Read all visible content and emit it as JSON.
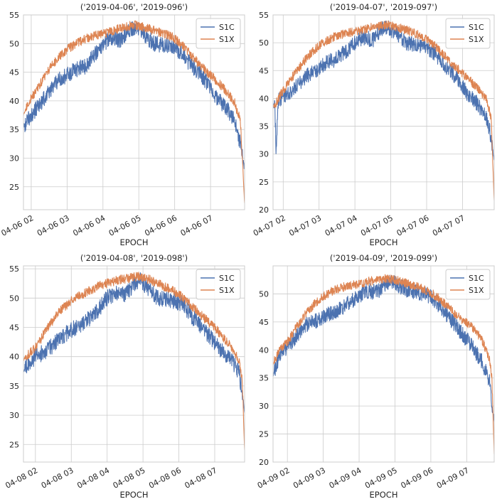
{
  "chart_data": [
    {
      "type": "line",
      "title": "('2019-04-06', '2019-096')",
      "xlabel": "EPOCH",
      "ylabel": "",
      "xlim": [
        "2019-04-06 01:47",
        "2019-04-06 07:57"
      ],
      "ylim": [
        21,
        55
      ],
      "yticks": [
        25,
        30,
        35,
        40,
        45,
        50,
        55
      ],
      "xticks": [
        "2019-04-06 02:00",
        "2019-04-06 03:00",
        "2019-04-06 04:00",
        "2019-04-06 05:00",
        "2019-04-06 06:00",
        "2019-04-06 07:00"
      ],
      "xticklabels": [
        "04-06 02",
        "04-06 03",
        "04-06 04",
        "04-06 05",
        "04-06 06",
        "04-06 07"
      ],
      "grid": true,
      "legend": "top-right",
      "series": [
        {
          "name": "S1C",
          "color": "#4c72b0",
          "x": [
            "2019-04-06 01:47",
            "2019-04-06 01:50",
            "2019-04-06 02:00",
            "2019-04-06 02:15",
            "2019-04-06 02:30",
            "2019-04-06 02:45",
            "2019-04-06 03:00",
            "2019-04-06 03:15",
            "2019-04-06 03:30",
            "2019-04-06 03:45",
            "2019-04-06 04:00",
            "2019-04-06 04:15",
            "2019-04-06 04:30",
            "2019-04-06 04:45",
            "2019-04-06 04:55",
            "2019-04-06 05:10",
            "2019-04-06 05:25",
            "2019-04-06 05:40",
            "2019-04-06 05:55",
            "2019-04-06 06:10",
            "2019-04-06 06:25",
            "2019-04-06 06:40",
            "2019-04-06 06:55",
            "2019-04-06 07:10",
            "2019-04-06 07:25",
            "2019-04-06 07:40",
            "2019-04-06 07:50",
            "2019-04-06 07:57"
          ],
          "y": [
            35.5,
            36,
            37.5,
            39.5,
            41.5,
            43.5,
            44.5,
            45.5,
            46,
            48,
            50,
            51,
            50.5,
            52.5,
            52.8,
            51.5,
            50,
            49.8,
            49.5,
            48.5,
            46.5,
            45,
            43,
            40.5,
            39,
            36.5,
            32.5,
            28
          ]
        },
        {
          "name": "S1X",
          "color": "#dd8452",
          "x": [
            "2019-04-06 01:47",
            "2019-04-06 01:50",
            "2019-04-06 02:00",
            "2019-04-06 02:15",
            "2019-04-06 02:30",
            "2019-04-06 02:45",
            "2019-04-06 03:00",
            "2019-04-06 03:15",
            "2019-04-06 03:30",
            "2019-04-06 03:45",
            "2019-04-06 04:00",
            "2019-04-06 04:15",
            "2019-04-06 04:30",
            "2019-04-06 04:45",
            "2019-04-06 04:55",
            "2019-04-06 05:10",
            "2019-04-06 05:25",
            "2019-04-06 05:40",
            "2019-04-06 05:55",
            "2019-04-06 06:10",
            "2019-04-06 06:25",
            "2019-04-06 06:40",
            "2019-04-06 06:55",
            "2019-04-06 07:10",
            "2019-04-06 07:25",
            "2019-04-06 07:40",
            "2019-04-06 07:50",
            "2019-04-06 07:57"
          ],
          "y": [
            37.5,
            38.5,
            40.5,
            43,
            45.5,
            47.5,
            49,
            50,
            50.8,
            51.3,
            51.7,
            52.2,
            52.7,
            53.1,
            53.2,
            52.8,
            52.3,
            51.8,
            51.2,
            50,
            48.3,
            46.5,
            45,
            43.5,
            41.8,
            39.8,
            36.5,
            22
          ]
        }
      ]
    },
    {
      "type": "line",
      "title": "('2019-04-07', '2019-097')",
      "xlabel": "EPOCH",
      "ylabel": "",
      "xlim": [
        "2019-04-07 01:43",
        "2019-04-07 07:53"
      ],
      "ylim": [
        20,
        55
      ],
      "yticks": [
        20,
        25,
        30,
        35,
        40,
        45,
        50,
        55
      ],
      "xticks": [
        "2019-04-07 02:00",
        "2019-04-07 03:00",
        "2019-04-07 04:00",
        "2019-04-07 05:00",
        "2019-04-07 06:00",
        "2019-04-07 07:00"
      ],
      "xticklabels": [
        "04-07 02",
        "04-07 03",
        "04-07 04",
        "04-07 05",
        "04-07 06",
        "04-07 07"
      ],
      "grid": true,
      "legend": "top-right",
      "series": [
        {
          "name": "S1C",
          "color": "#4c72b0",
          "x": [
            "2019-04-07 01:43",
            "2019-04-07 01:46",
            "2019-04-07 01:48",
            "2019-04-07 01:52",
            "2019-04-07 02:00",
            "2019-04-07 02:15",
            "2019-04-07 02:30",
            "2019-04-07 02:45",
            "2019-04-07 03:00",
            "2019-04-07 03:15",
            "2019-04-07 03:30",
            "2019-04-07 03:45",
            "2019-04-07 04:00",
            "2019-04-07 04:15",
            "2019-04-07 04:30",
            "2019-04-07 04:45",
            "2019-04-07 04:55",
            "2019-04-07 05:10",
            "2019-04-07 05:25",
            "2019-04-07 05:40",
            "2019-04-07 05:55",
            "2019-04-07 06:10",
            "2019-04-07 06:25",
            "2019-04-07 06:40",
            "2019-04-07 06:55",
            "2019-04-07 07:10",
            "2019-04-07 07:25",
            "2019-04-07 07:40",
            "2019-04-07 07:48",
            "2019-04-07 07:53"
          ],
          "y": [
            38.5,
            38.8,
            31,
            39.5,
            40.5,
            41.5,
            43,
            44.5,
            45.5,
            46.5,
            47.2,
            48.5,
            50,
            51,
            50.5,
            52.5,
            52.8,
            51.5,
            50,
            49.8,
            49.5,
            48.5,
            46.5,
            45,
            43,
            40.5,
            39,
            36.5,
            33,
            29
          ]
        },
        {
          "name": "S1X",
          "color": "#dd8452",
          "x": [
            "2019-04-07 01:43",
            "2019-04-07 01:50",
            "2019-04-07 02:00",
            "2019-04-07 02:15",
            "2019-04-07 02:30",
            "2019-04-07 02:45",
            "2019-04-07 03:00",
            "2019-04-07 03:15",
            "2019-04-07 03:30",
            "2019-04-07 03:45",
            "2019-04-07 04:00",
            "2019-04-07 04:15",
            "2019-04-07 04:30",
            "2019-04-07 04:45",
            "2019-04-07 04:55",
            "2019-04-07 05:10",
            "2019-04-07 05:25",
            "2019-04-07 05:40",
            "2019-04-07 05:55",
            "2019-04-07 06:10",
            "2019-04-07 06:25",
            "2019-04-07 06:40",
            "2019-04-07 06:55",
            "2019-04-07 07:10",
            "2019-04-07 07:25",
            "2019-04-07 07:40",
            "2019-04-07 07:48",
            "2019-04-07 07:53"
          ],
          "y": [
            38.5,
            39.5,
            41.5,
            43.8,
            46,
            48,
            49.5,
            50.5,
            51.3,
            51.7,
            52,
            52.4,
            52.8,
            53.1,
            53.2,
            52.8,
            52.3,
            51.7,
            51,
            49.8,
            48.2,
            46.5,
            45,
            43.5,
            41.8,
            39.8,
            36.5,
            21.5
          ]
        }
      ]
    },
    {
      "type": "line",
      "title": "('2019-04-08', '2019-098')",
      "xlabel": "EPOCH",
      "ylabel": "",
      "xlim": [
        "2019-04-08 01:40",
        "2019-04-08 07:50"
      ],
      "ylim": [
        22,
        55.5
      ],
      "yticks": [
        25,
        30,
        35,
        40,
        45,
        50,
        55
      ],
      "xticks": [
        "2019-04-08 02:00",
        "2019-04-08 03:00",
        "2019-04-08 04:00",
        "2019-04-08 05:00",
        "2019-04-08 06:00",
        "2019-04-08 07:00"
      ],
      "xticklabels": [
        "04-08 02",
        "04-08 03",
        "04-08 04",
        "04-08 05",
        "04-08 06",
        "04-08 07"
      ],
      "grid": true,
      "legend": "top-right",
      "series": [
        {
          "name": "S1C",
          "color": "#4c72b0",
          "x": [
            "2019-04-08 01:40",
            "2019-04-08 01:45",
            "2019-04-08 02:00",
            "2019-04-08 02:15",
            "2019-04-08 02:30",
            "2019-04-08 02:45",
            "2019-04-08 03:00",
            "2019-04-08 03:15",
            "2019-04-08 03:30",
            "2019-04-08 03:45",
            "2019-04-08 04:00",
            "2019-04-08 04:15",
            "2019-04-08 04:30",
            "2019-04-08 04:45",
            "2019-04-08 04:55",
            "2019-04-08 05:10",
            "2019-04-08 05:25",
            "2019-04-08 05:40",
            "2019-04-08 05:55",
            "2019-04-08 06:10",
            "2019-04-08 06:25",
            "2019-04-08 06:40",
            "2019-04-08 06:55",
            "2019-04-08 07:10",
            "2019-04-08 07:25",
            "2019-04-08 07:40",
            "2019-04-08 07:46",
            "2019-04-08 07:50"
          ],
          "y": [
            37.5,
            38.5,
            40,
            40.8,
            42,
            43.5,
            44.5,
            45.5,
            46.5,
            48,
            50,
            51,
            50.5,
            52.5,
            53.2,
            51.5,
            50,
            49.8,
            49.5,
            48.5,
            46.5,
            45,
            43,
            41,
            40,
            37.5,
            34,
            30.5
          ]
        },
        {
          "name": "S1X",
          "color": "#dd8452",
          "x": [
            "2019-04-08 01:40",
            "2019-04-08 01:50",
            "2019-04-08 02:00",
            "2019-04-08 02:15",
            "2019-04-08 02:30",
            "2019-04-08 02:45",
            "2019-04-08 03:00",
            "2019-04-08 03:15",
            "2019-04-08 03:30",
            "2019-04-08 03:45",
            "2019-04-08 04:00",
            "2019-04-08 04:15",
            "2019-04-08 04:30",
            "2019-04-08 04:45",
            "2019-04-08 04:55",
            "2019-04-08 05:10",
            "2019-04-08 05:25",
            "2019-04-08 05:40",
            "2019-04-08 05:55",
            "2019-04-08 06:10",
            "2019-04-08 06:25",
            "2019-04-08 06:40",
            "2019-04-08 06:55",
            "2019-04-08 07:10",
            "2019-04-08 07:25",
            "2019-04-08 07:40",
            "2019-04-08 07:46",
            "2019-04-08 07:50"
          ],
          "y": [
            39.5,
            40.5,
            41.5,
            44,
            46.3,
            48.2,
            49.5,
            50.5,
            51.3,
            52,
            52.5,
            53,
            53.3,
            53.6,
            53.8,
            53.2,
            52.5,
            51.8,
            51,
            49.8,
            48.3,
            46.8,
            45.5,
            43.8,
            42,
            39.5,
            36,
            24
          ]
        }
      ]
    },
    {
      "type": "line",
      "title": "('2019-04-09', '2019-099')",
      "xlabel": "EPOCH",
      "ylabel": "",
      "xlim": [
        "2019-04-09 01:36",
        "2019-04-09 07:46"
      ],
      "ylim": [
        20,
        55
      ],
      "yticks": [
        20,
        25,
        30,
        35,
        40,
        45,
        50
      ],
      "xticks": [
        "2019-04-09 02:00",
        "2019-04-09 03:00",
        "2019-04-09 04:00",
        "2019-04-09 05:00",
        "2019-04-09 06:00",
        "2019-04-09 07:00"
      ],
      "xticklabels": [
        "04-09 02",
        "04-09 03",
        "04-09 04",
        "04-09 05",
        "04-09 06",
        "04-09 07"
      ],
      "grid": true,
      "legend": "top-right",
      "series": [
        {
          "name": "S1C",
          "color": "#4c72b0",
          "x": [
            "2019-04-09 01:36",
            "2019-04-09 01:42",
            "2019-04-09 01:50",
            "2019-04-09 02:00",
            "2019-04-09 02:15",
            "2019-04-09 02:30",
            "2019-04-09 02:45",
            "2019-04-09 03:00",
            "2019-04-09 03:15",
            "2019-04-09 03:30",
            "2019-04-09 03:45",
            "2019-04-09 04:00",
            "2019-04-09 04:15",
            "2019-04-09 04:30",
            "2019-04-09 04:45",
            "2019-04-09 04:55",
            "2019-04-09 05:10",
            "2019-04-09 05:25",
            "2019-04-09 05:40",
            "2019-04-09 05:55",
            "2019-04-09 06:10",
            "2019-04-09 06:25",
            "2019-04-09 06:40",
            "2019-04-09 06:55",
            "2019-04-09 07:10",
            "2019-04-09 07:25",
            "2019-04-09 07:38",
            "2019-04-09 07:46"
          ],
          "y": [
            35.5,
            37.5,
            39.5,
            40.5,
            42.5,
            44.5,
            45,
            46,
            46.5,
            47.5,
            48.5,
            49.8,
            50.5,
            50.3,
            51.8,
            52.2,
            51.3,
            50.5,
            50.2,
            49.8,
            48.5,
            46.5,
            44.5,
            42.5,
            40.5,
            38,
            34.5,
            27
          ]
        },
        {
          "name": "S1X",
          "color": "#dd8452",
          "x": [
            "2019-04-09 01:36",
            "2019-04-09 01:45",
            "2019-04-09 02:00",
            "2019-04-09 02:15",
            "2019-04-09 02:30",
            "2019-04-09 02:45",
            "2019-04-09 03:00",
            "2019-04-09 03:15",
            "2019-04-09 03:30",
            "2019-04-09 03:45",
            "2019-04-09 04:00",
            "2019-04-09 04:15",
            "2019-04-09 04:30",
            "2019-04-09 04:45",
            "2019-04-09 04:55",
            "2019-04-09 05:10",
            "2019-04-09 05:25",
            "2019-04-09 05:40",
            "2019-04-09 05:55",
            "2019-04-09 06:10",
            "2019-04-09 06:25",
            "2019-04-09 06:40",
            "2019-04-09 06:55",
            "2019-04-09 07:10",
            "2019-04-09 07:25",
            "2019-04-09 07:38",
            "2019-04-09 07:42",
            "2019-04-09 07:46"
          ],
          "y": [
            37.5,
            39.5,
            41.5,
            44,
            46.3,
            48.2,
            49.5,
            50.5,
            51.1,
            51.5,
            51.8,
            52.2,
            52.5,
            52.7,
            52.6,
            52.2,
            51.7,
            51.2,
            50.5,
            49.5,
            48,
            46.5,
            45.2,
            44,
            42,
            38.5,
            35.5,
            21.5
          ]
        }
      ]
    }
  ]
}
